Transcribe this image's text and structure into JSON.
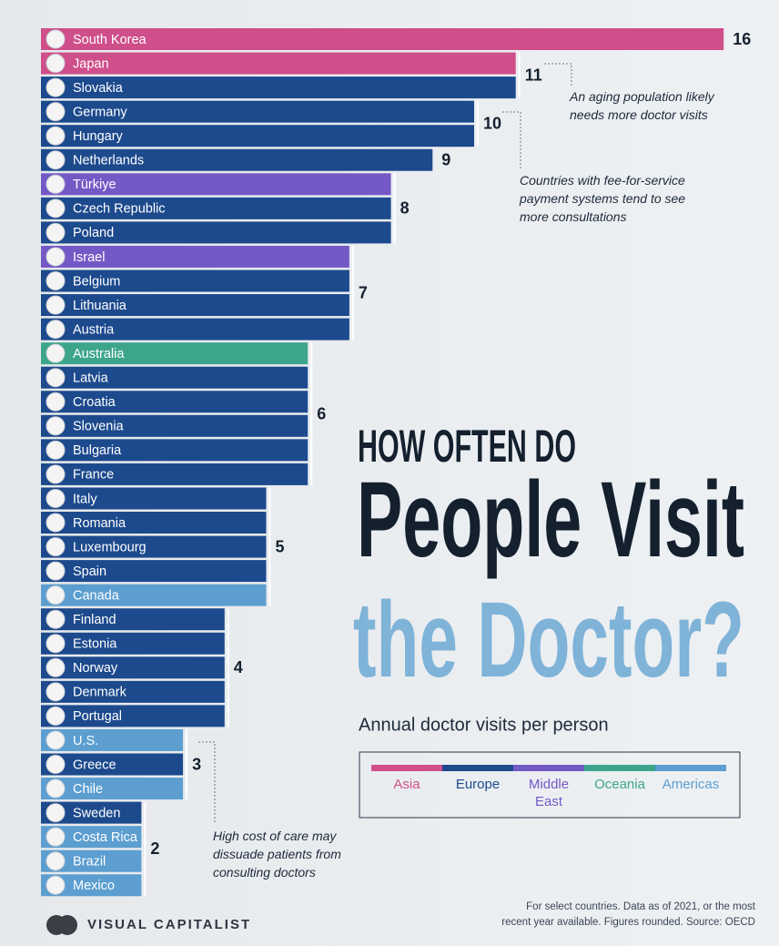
{
  "chart_data": {
    "type": "bar",
    "orientation": "horizontal",
    "title": [
      "HOW OFTEN DO",
      "People Visit",
      "the Doctor?"
    ],
    "subtitle": "Annual doctor visits per person",
    "categories": [
      "South Korea",
      "Japan",
      "Slovakia",
      "Germany",
      "Hungary",
      "Netherlands",
      "Türkiye",
      "Czech Republic",
      "Poland",
      "Israel",
      "Belgium",
      "Lithuania",
      "Austria",
      "Australia",
      "Latvia",
      "Croatia",
      "Slovenia",
      "Bulgaria",
      "France",
      "Italy",
      "Romania",
      "Luxembourg",
      "Spain",
      "Canada",
      "Finland",
      "Estonia",
      "Norway",
      "Denmark",
      "Portugal",
      "U.S.",
      "Greece",
      "Chile",
      "Sweden",
      "Costa Rica",
      "Brazil",
      "Mexico"
    ],
    "series": [
      {
        "name": "Asia",
        "color": "#cf4f8b",
        "values": [
          16,
          11,
          null,
          null,
          null,
          null,
          null,
          null,
          null,
          null,
          null,
          null,
          null,
          null,
          null,
          null,
          null,
          null,
          null,
          null,
          null,
          null,
          null,
          null,
          null,
          null,
          null,
          null,
          null,
          null,
          null,
          null,
          null,
          null,
          null,
          null
        ]
      },
      {
        "name": "Europe",
        "color": "#1d4a8d",
        "values": [
          null,
          null,
          11,
          10,
          10,
          9,
          null,
          8,
          8,
          null,
          7,
          7,
          7,
          null,
          6,
          6,
          6,
          6,
          6,
          5,
          5,
          5,
          5,
          null,
          4,
          4,
          4,
          4,
          4,
          null,
          3,
          null,
          2,
          null,
          null,
          null
        ]
      },
      {
        "name": "Middle East",
        "color": "#7459c6",
        "values": [
          null,
          null,
          null,
          null,
          null,
          null,
          8,
          null,
          null,
          7,
          null,
          null,
          null,
          null,
          null,
          null,
          null,
          null,
          null,
          null,
          null,
          null,
          null,
          null,
          null,
          null,
          null,
          null,
          null,
          null,
          null,
          null,
          null,
          null,
          null,
          null
        ]
      },
      {
        "name": "Oceania",
        "color": "#3da58b",
        "values": [
          null,
          null,
          null,
          null,
          null,
          null,
          null,
          null,
          null,
          null,
          null,
          null,
          null,
          6,
          null,
          null,
          null,
          null,
          null,
          null,
          null,
          null,
          null,
          null,
          null,
          null,
          null,
          null,
          null,
          null,
          null,
          null,
          null,
          null,
          null,
          null
        ]
      },
      {
        "name": "Americas",
        "color": "#5c9ed0",
        "values": [
          null,
          null,
          null,
          null,
          null,
          null,
          null,
          null,
          null,
          null,
          null,
          null,
          null,
          null,
          null,
          null,
          null,
          null,
          null,
          null,
          null,
          null,
          null,
          5,
          null,
          null,
          null,
          null,
          null,
          3,
          null,
          3,
          null,
          2,
          2,
          2
        ]
      }
    ],
    "annotations": [
      "An aging population likely needs more doctor visits",
      "Countries with fee-for-service payment systems tend to see more consultations",
      "High cost of care may dissuade patients from consulting doctors"
    ],
    "footnote": "For select countries.  Data as of 2021, or the most recent year available. Figures rounded. Source: OECD",
    "source": "VISUAL CAPITALIST"
  }
}
